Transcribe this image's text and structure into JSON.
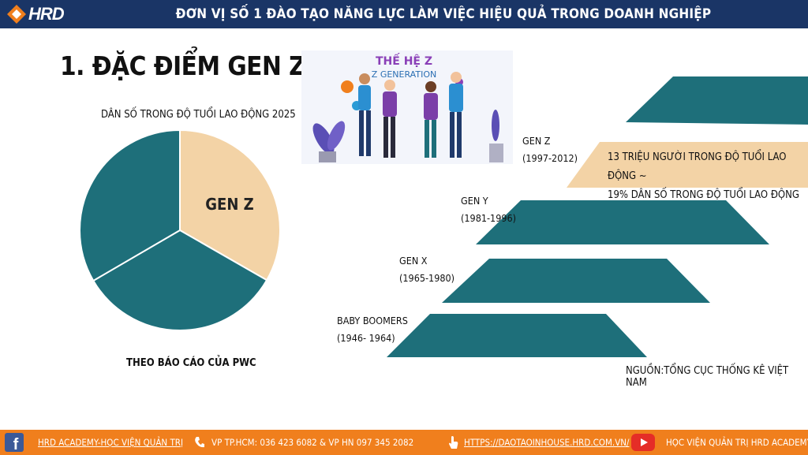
{
  "header": {
    "logo_text": "HRD",
    "title": "ĐƠN VỊ SỐ 1 ĐÀO TẠO NĂNG LỰC LÀM VIỆC HIỆU QUẢ TRONG DOANH NGHIỆP"
  },
  "section_title": "1. ĐẶC ĐIỂM GEN Z",
  "chart": {
    "title": "DÂN SỐ TRONG ĐỘ TUỔI LAO ĐỘNG 2025",
    "source": "THEO BÁO CÁO CỦA PWC",
    "highlight_label": "GEN Z"
  },
  "chart_data": {
    "type": "pie",
    "title": "DÂN SỐ TRONG ĐỘ TUỔI LAO ĐỘNG 2025",
    "slices": [
      {
        "label": "GEN Z",
        "value": 33.3,
        "color": "#f3d3a6"
      },
      {
        "label": "",
        "value": 33.3,
        "color": "#1e6f7a"
      },
      {
        "label": "",
        "value": 33.4,
        "color": "#1e6f7a"
      }
    ]
  },
  "illustration": {
    "title_line1": "THẾ HỆ Z",
    "title_line2": "Z GENERATION"
  },
  "generations": [
    {
      "name": "GEN Z",
      "years": "(1997-2012)"
    },
    {
      "name": "GEN Y",
      "years": "(1981-1996)"
    },
    {
      "name": "GEN X",
      "years": "(1965-1980)"
    },
    {
      "name": "BABY BOOMERS",
      "years": "(1946- 1964)"
    }
  ],
  "callout": {
    "line1": "13 TRIỆU NGƯỜI TRONG ĐỘ TUỔI LAO ĐỘNG ~",
    "line2": "19% DÂN SỐ TRONG ĐỘ TUỔI LAO ĐỘNG"
  },
  "source_right": "NGUỒN:TỔNG CỤC THỐNG KÊ VIỆT NAM",
  "footer": {
    "academy": "HRD ACADEMY-HỌC VIỆN QUẢN TRỊ",
    "phones": "VP TP.HCM: 036 423 6082 &  VP HN 097 345 2082",
    "website": "HTTPS://DAOTAOINHOUSE.HRD.COM.VN/",
    "youtube": "HỌC VIỆN QUẢN TRỊ HRD ACADEMY"
  },
  "colors": {
    "header_bg": "#1a3566",
    "teal": "#1e6f7a",
    "peach": "#f3d3a6",
    "footer_bg": "#f07f1d"
  }
}
